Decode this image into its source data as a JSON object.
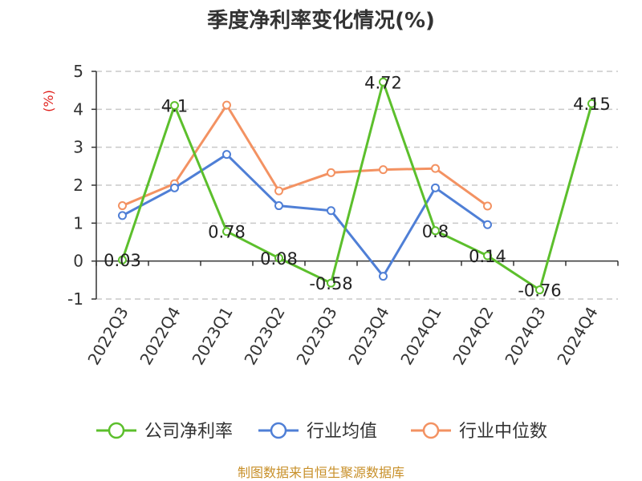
{
  "colors": {
    "company": "#5cbf2c",
    "industry_avg": "#4f7fd6",
    "industry_median": "#f39262",
    "axis": "#333333",
    "grid": "#c8c8c8",
    "ylabel": "#e0201c",
    "source": "#c8902a"
  },
  "chart_data": {
    "type": "line",
    "title": "季度净利率变化情况(%)",
    "xlabel": "",
    "ylabel": "(%)",
    "ylim": [
      -1,
      5
    ],
    "yticks": [
      "-1",
      "0",
      "1",
      "2",
      "3",
      "4",
      "5"
    ],
    "grid": true,
    "legend_position": "bottom",
    "categories": [
      "2022Q3",
      "2022Q4",
      "2023Q1",
      "2023Q2",
      "2023Q3",
      "2023Q4",
      "2024Q1",
      "2024Q2",
      "2024Q3",
      "2024Q4"
    ],
    "series": [
      {
        "name": "公司净利率",
        "values": [
          0.03,
          4.1,
          0.78,
          0.08,
          -0.58,
          4.72,
          0.8,
          0.14,
          -0.76,
          4.15
        ],
        "labels": [
          "0.03",
          "4.1",
          "0.78",
          "0.08",
          "-0.58",
          "4.72",
          "0.8",
          "0.14",
          "-0.76",
          "4.15"
        ]
      },
      {
        "name": "行业均值",
        "values": [
          1.2,
          1.93,
          2.81,
          1.46,
          1.33,
          -0.4,
          1.93,
          0.96,
          null,
          null
        ]
      },
      {
        "name": "行业中位数",
        "values": [
          1.46,
          2.04,
          4.11,
          1.85,
          2.33,
          2.41,
          2.44,
          1.45,
          null,
          null
        ]
      }
    ]
  },
  "source": "制图数据来自恒生聚源数据库"
}
